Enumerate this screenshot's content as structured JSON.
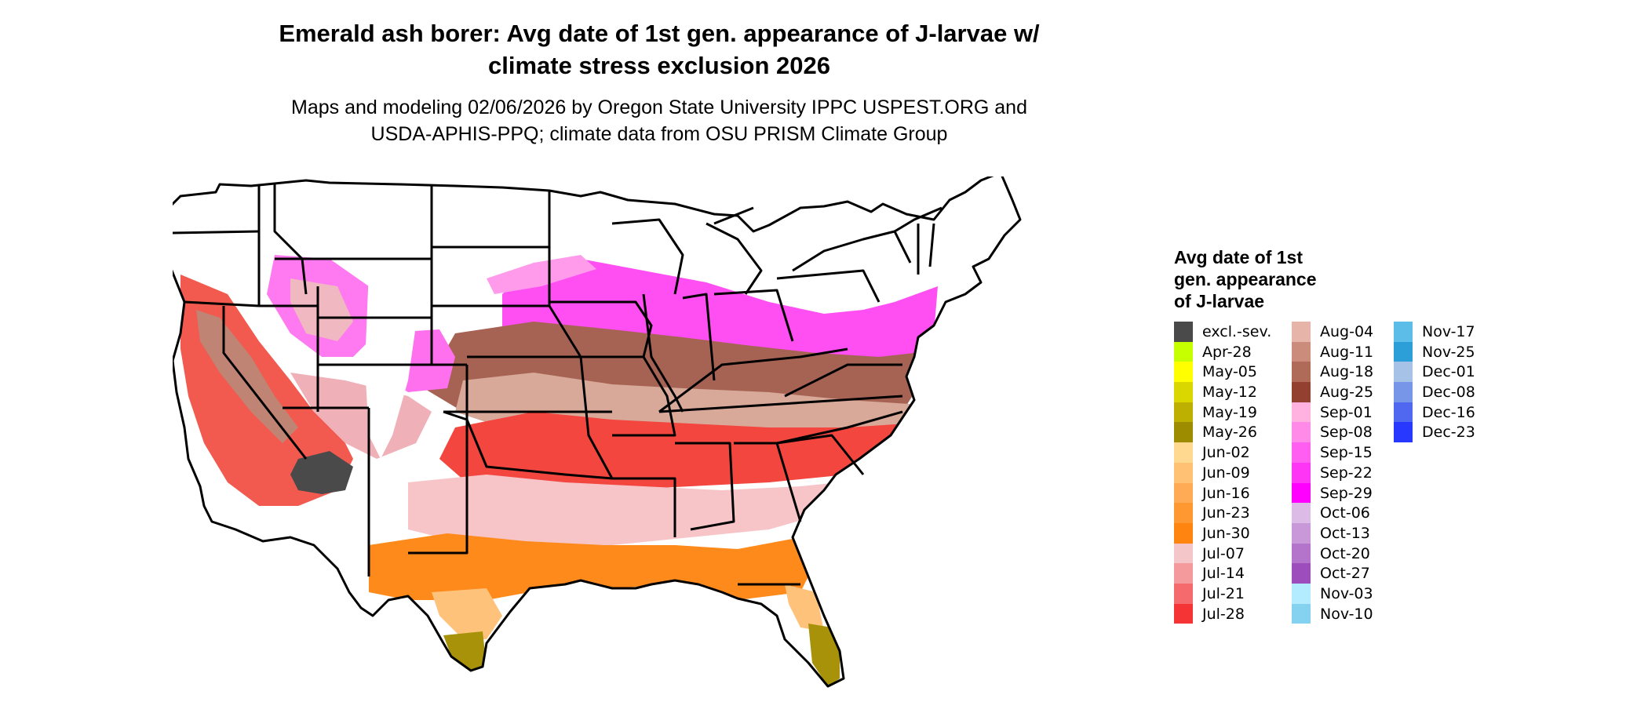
{
  "title_line1": "Emerald ash borer: Avg date of 1st gen. appearance of J-larvae w/",
  "title_line2": "climate stress exclusion 2026",
  "subtitle_line1": "Maps and modeling 02/06/2026 by Oregon State University IPPC USPEST.ORG and",
  "subtitle_line2": "USDA-APHIS-PPQ; climate data from OSU PRISM Climate Group",
  "legend": {
    "title_lines": [
      "Avg date of 1st",
      "gen. appearance",
      "of J-larvae"
    ],
    "columns": [
      [
        {
          "label": "excl.-sev.",
          "color": "#4a4a4a"
        },
        {
          "label": "Apr-28",
          "color": "#c6ff00"
        },
        {
          "label": "May-05",
          "color": "#ffff00"
        },
        {
          "label": "May-12",
          "color": "#d9d600"
        },
        {
          "label": "May-19",
          "color": "#bdb000"
        },
        {
          "label": "May-26",
          "color": "#9e8c00"
        },
        {
          "label": "Jun-02",
          "color": "#ffd98f"
        },
        {
          "label": "Jun-09",
          "color": "#ffc275"
        },
        {
          "label": "Jun-16",
          "color": "#ffab55"
        },
        {
          "label": "Jun-23",
          "color": "#ff9830"
        },
        {
          "label": "Jun-30",
          "color": "#ff8510"
        },
        {
          "label": "Jul-07",
          "color": "#f5c6c9"
        },
        {
          "label": "Jul-14",
          "color": "#f59a9c"
        },
        {
          "label": "Jul-21",
          "color": "#f56a6c"
        },
        {
          "label": "Jul-28",
          "color": "#f53535"
        }
      ],
      [
        {
          "label": "Aug-04",
          "color": "#e6b4a8"
        },
        {
          "label": "Aug-11",
          "color": "#cc8c7c"
        },
        {
          "label": "Aug-18",
          "color": "#b06a58"
        },
        {
          "label": "Aug-25",
          "color": "#944030"
        },
        {
          "label": "Sep-01",
          "color": "#ffb2e0"
        },
        {
          "label": "Sep-08",
          "color": "#ff8ae8"
        },
        {
          "label": "Sep-15",
          "color": "#ff5ef0"
        },
        {
          "label": "Sep-22",
          "color": "#ff35f5"
        },
        {
          "label": "Sep-29",
          "color": "#ff00ff"
        },
        {
          "label": "Oct-06",
          "color": "#dcbce6"
        },
        {
          "label": "Oct-13",
          "color": "#c898d8"
        },
        {
          "label": "Oct-20",
          "color": "#b574cc"
        },
        {
          "label": "Oct-27",
          "color": "#9d4ebc"
        },
        {
          "label": "Nov-03",
          "color": "#b4ecff"
        },
        {
          "label": "Nov-10",
          "color": "#84d2f0"
        }
      ],
      [
        {
          "label": "Nov-17",
          "color": "#5cbde8"
        },
        {
          "label": "Nov-25",
          "color": "#2c9ed8"
        },
        {
          "label": "Dec-01",
          "color": "#a6c2e6"
        },
        {
          "label": "Dec-08",
          "color": "#7896e8"
        },
        {
          "label": "Dec-16",
          "color": "#5068f0"
        },
        {
          "label": "Dec-23",
          "color": "#2838ff"
        }
      ]
    ]
  }
}
